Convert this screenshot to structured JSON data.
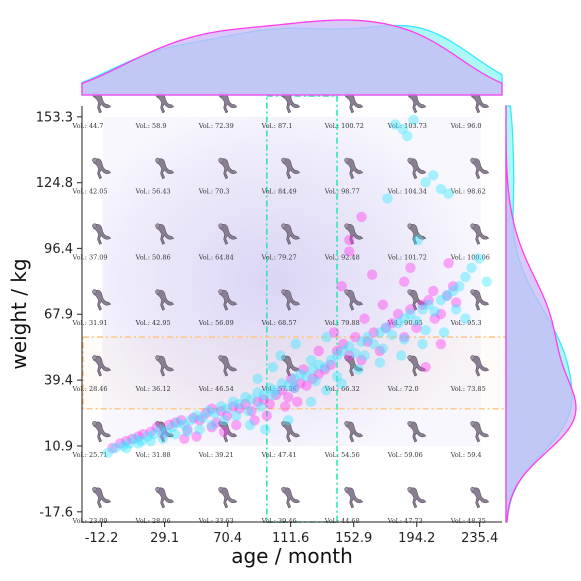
{
  "chart_data": {
    "type": "scatter",
    "xlabel": "age / month",
    "ylabel": "weight / kg",
    "xlim": [
      -25,
      250
    ],
    "ylim": [
      -22,
      158
    ],
    "xticks": [
      -12.2,
      29.1,
      70.4,
      111.6,
      152.9,
      194.2,
      235.4
    ],
    "yticks": [
      153.3,
      124.8,
      96.4,
      67.9,
      39.4,
      10.9,
      -17.6
    ],
    "colors": {
      "series_a": "#ff3cf0",
      "series_b": "#37e8ff",
      "highlight_v": "#2ee6b2",
      "highlight_h": "#ffc98a",
      "marginal_a_fill": "#c9b8f5",
      "marginal_b_fill": "#8ff5f2"
    },
    "vertical_band": {
      "x0": 96,
      "x1": 142
    },
    "horizontal_band": {
      "y0": 27,
      "y1": 58
    },
    "grid_x": [
      -12.2,
      29.1,
      70.4,
      111.6,
      152.9,
      194.2,
      235.4
    ],
    "grid_y": [
      153.3,
      124.8,
      96.4,
      67.9,
      39.4,
      10.9,
      -17.6
    ],
    "grid_icon": "sitting-figure-icon",
    "volume_labels": [
      [
        "Vol.: 44.7",
        "Vol.: 58.9",
        "Vol.: 72.39",
        "Vol.: 87.1",
        "Vol.: 100.72",
        "Vol.: 103.73",
        "Vol.: 96.0"
      ],
      [
        "Vol.: 42.05",
        "Vol.: 56.43",
        "Vol.: 70.3",
        "Vol.: 84.49",
        "Vol.: 98.77",
        "Vol.: 104.34",
        "Vol.: 98.62"
      ],
      [
        "Vol.: 37.09",
        "Vol.: 50.86",
        "Vol.: 64.84",
        "Vol.: 79.27",
        "Vol.: 92.48",
        "Vol.: 101.72",
        "Vol.: 100.06"
      ],
      [
        "Vol.: 31.91",
        "Vol.: 42.95",
        "Vol.: 56.09",
        "Vol.: 68.57",
        "Vol.: 79.88",
        "Vol.: 90.95",
        "Vol.: 95.3"
      ],
      [
        "Vol.: 28.46",
        "Vol.: 36.12",
        "Vol.: 46.54",
        "Vol.: 57.36",
        "Vol.: 66.32",
        "Vol.: 72.0",
        "Vol.: 73.85"
      ],
      [
        "Vol.: 25.71",
        "Vol.: 31.88",
        "Vol.: 39.21",
        "Vol.: 47.41",
        "Vol.: 54.56",
        "Vol.: 59.06",
        "Vol.: 59.4"
      ],
      [
        "Vol.: 23.09",
        "Vol.: 28.06",
        "Vol.: 33.63",
        "Vol.: 39.46",
        "Vol.: 44.68",
        "Vol.: 47.73",
        "Vol.: 48.35"
      ]
    ],
    "series": [
      {
        "color_key": "series_a",
        "points": [
          [
            -5,
            10
          ],
          [
            0,
            12
          ],
          [
            4,
            13
          ],
          [
            8,
            14
          ],
          [
            12,
            15
          ],
          [
            15,
            16
          ],
          [
            20,
            17
          ],
          [
            24,
            19
          ],
          [
            28,
            16
          ],
          [
            32,
            20
          ],
          [
            36,
            21
          ],
          [
            40,
            22
          ],
          [
            44,
            18
          ],
          [
            48,
            23
          ],
          [
            52,
            22
          ],
          [
            56,
            25
          ],
          [
            60,
            27
          ],
          [
            63,
            21
          ],
          [
            66,
            26
          ],
          [
            70,
            24
          ],
          [
            74,
            28
          ],
          [
            78,
            27
          ],
          [
            82,
            29
          ],
          [
            86,
            26
          ],
          [
            90,
            30
          ],
          [
            94,
            31
          ],
          [
            98,
            29
          ],
          [
            102,
            33
          ],
          [
            106,
            35
          ],
          [
            110,
            32
          ],
          [
            114,
            36
          ],
          [
            118,
            38
          ],
          [
            122,
            37
          ],
          [
            126,
            40
          ],
          [
            130,
            42
          ],
          [
            134,
            44
          ],
          [
            138,
            46
          ],
          [
            142,
            52
          ],
          [
            146,
            55
          ],
          [
            150,
            50
          ],
          [
            154,
            58
          ],
          [
            158,
            48
          ],
          [
            162,
            56
          ],
          [
            166,
            60
          ],
          [
            170,
            52
          ],
          [
            174,
            62
          ],
          [
            178,
            64
          ],
          [
            182,
            68
          ],
          [
            186,
            58
          ],
          [
            190,
            70
          ],
          [
            194,
            62
          ],
          [
            198,
            72
          ],
          [
            202,
            74
          ],
          [
            206,
            66
          ],
          [
            210,
            68
          ],
          [
            214,
            76
          ],
          [
            218,
            80
          ],
          [
            210,
            55
          ],
          [
            200,
            45
          ],
          [
            160,
            66
          ],
          [
            150,
            95
          ],
          [
            145,
            80
          ],
          [
            150,
            100
          ],
          [
            165,
            85
          ],
          [
            158,
            110
          ],
          [
            190,
            88
          ],
          [
            205,
            78
          ],
          [
            215,
            90
          ],
          [
            172,
            72
          ],
          [
            186,
            82
          ],
          [
            220,
            73
          ],
          [
            140,
            60
          ],
          [
            130,
            52
          ],
          [
            120,
            44
          ],
          [
            112,
            40
          ],
          [
            116,
            30
          ],
          [
            108,
            28
          ],
          [
            96,
            24
          ],
          [
            88,
            22
          ],
          [
            76,
            20
          ],
          [
            68,
            17
          ],
          [
            60,
            19
          ],
          [
            50,
            15
          ],
          [
            42,
            14
          ]
        ]
      },
      {
        "color_key": "series_b",
        "points": [
          [
            -8,
            8
          ],
          [
            -3,
            10
          ],
          [
            2,
            11
          ],
          [
            6,
            12
          ],
          [
            10,
            14
          ],
          [
            14,
            13
          ],
          [
            18,
            15
          ],
          [
            22,
            16
          ],
          [
            26,
            18
          ],
          [
            30,
            17
          ],
          [
            34,
            19
          ],
          [
            38,
            21
          ],
          [
            42,
            20
          ],
          [
            46,
            22
          ],
          [
            50,
            24
          ],
          [
            54,
            23
          ],
          [
            58,
            26
          ],
          [
            62,
            25
          ],
          [
            66,
            28
          ],
          [
            70,
            27
          ],
          [
            74,
            30
          ],
          [
            78,
            29
          ],
          [
            82,
            32
          ],
          [
            86,
            31
          ],
          [
            90,
            34
          ],
          [
            94,
            33
          ],
          [
            98,
            36
          ],
          [
            102,
            35
          ],
          [
            106,
            38
          ],
          [
            110,
            37
          ],
          [
            114,
            40
          ],
          [
            118,
            42
          ],
          [
            122,
            41
          ],
          [
            126,
            44
          ],
          [
            130,
            46
          ],
          [
            134,
            45
          ],
          [
            138,
            48
          ],
          [
            142,
            50
          ],
          [
            146,
            52
          ],
          [
            150,
            54
          ],
          [
            154,
            51
          ],
          [
            158,
            56
          ],
          [
            162,
            58
          ],
          [
            166,
            55
          ],
          [
            170,
            60
          ],
          [
            174,
            62
          ],
          [
            178,
            59
          ],
          [
            182,
            64
          ],
          [
            186,
            66
          ],
          [
            190,
            68
          ],
          [
            194,
            65
          ],
          [
            198,
            70
          ],
          [
            202,
            72
          ],
          [
            206,
            69
          ],
          [
            210,
            74
          ],
          [
            214,
            76
          ],
          [
            218,
            78
          ],
          [
            222,
            80
          ],
          [
            226,
            84
          ],
          [
            230,
            88
          ],
          [
            180,
            150
          ],
          [
            185,
            148
          ],
          [
            188,
            145
          ],
          [
            192,
            152
          ],
          [
            200,
            125
          ],
          [
            205,
            128
          ],
          [
            210,
            122
          ],
          [
            215,
            120
          ],
          [
            175,
            118
          ],
          [
            195,
            100
          ],
          [
            220,
            70
          ],
          [
            235,
            92
          ],
          [
            240,
            82
          ],
          [
            226,
            66
          ],
          [
            212,
            60
          ],
          [
            198,
            55
          ],
          [
            184,
            50
          ],
          [
            170,
            47
          ],
          [
            156,
            44
          ],
          [
            142,
            41
          ],
          [
            128,
            39
          ],
          [
            114,
            36
          ],
          [
            100,
            33
          ],
          [
            92,
            28
          ],
          [
            84,
            26
          ],
          [
            76,
            24
          ],
          [
            68,
            22
          ],
          [
            60,
            20
          ],
          [
            52,
            18
          ],
          [
            44,
            17
          ],
          [
            36,
            16
          ],
          [
            28,
            14
          ],
          [
            20,
            13
          ],
          [
            12,
            12
          ],
          [
            4,
            10
          ],
          [
            110,
            22
          ],
          [
            125,
            30
          ],
          [
            135,
            35
          ],
          [
            145,
            38
          ],
          [
            160,
            50
          ],
          [
            172,
            53
          ],
          [
            186,
            57
          ],
          [
            200,
            61
          ],
          [
            90,
            40
          ],
          [
            100,
            45
          ],
          [
            105,
            50
          ],
          [
            115,
            55
          ],
          [
            125,
            48
          ],
          [
            135,
            58
          ],
          [
            85,
            20
          ],
          [
            95,
            18
          ]
        ]
      }
    ]
  }
}
